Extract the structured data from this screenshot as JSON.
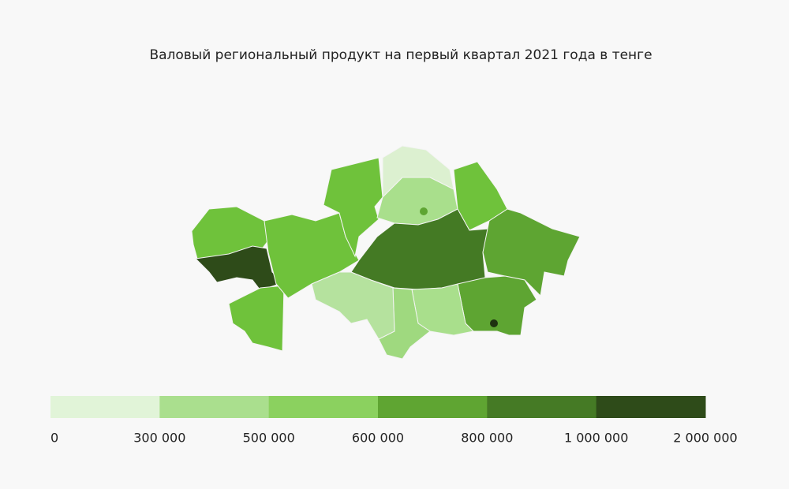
{
  "title": "Валовый региональный продукт на первый квартал 2021 года в тенге",
  "legend": {
    "bins": [
      0,
      {
        "value": 300000,
        "label": "300 000"
      },
      {
        "value": 500000,
        "label": "500 000"
      },
      {
        "value": 600000,
        "label": "600 000"
      },
      {
        "value": 800000,
        "label": "800 000"
      },
      {
        "value": 1000000,
        "label": "1 000 000"
      },
      {
        "value": 2000000,
        "label": "2 000 000"
      }
    ],
    "colors": [
      "#e1f4d8",
      "#aadf8e",
      "#8bd15f",
      "#5fa532",
      "#457a25",
      "#2e4b19"
    ]
  }
}
